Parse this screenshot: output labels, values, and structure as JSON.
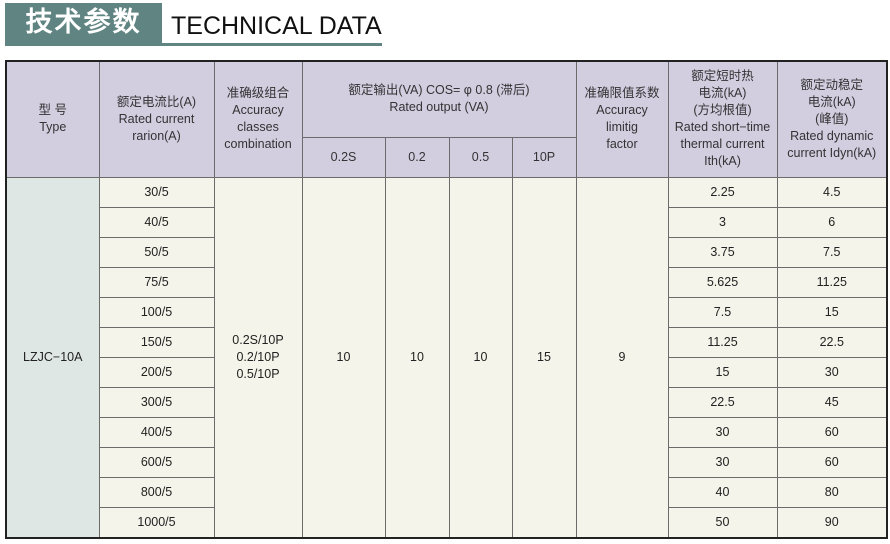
{
  "title": {
    "cn": "技术参数",
    "en": "TECHNICAL DATA"
  },
  "colors": {
    "title_bg": "#5f8482",
    "header_bg": "#d3cde0",
    "body_bg": "#f5f4ea",
    "type_bg": "#dfe7e5"
  },
  "headers": {
    "type": {
      "cn": "型 号",
      "en": "Type"
    },
    "ratio": {
      "cn": "额定电流比(A)",
      "en1": "Rated current",
      "en2": "rarion(A)"
    },
    "accuracy": {
      "cn": "准确级组合",
      "en1": "Accuracy",
      "en2": "classes",
      "en3": "combination"
    },
    "output": {
      "cn": "额定输出(VA) COS= φ 0.8 (滞后)",
      "en": "Rated output (VA)",
      "sub": [
        "0.2S",
        "0.2",
        "0.5",
        "10P"
      ]
    },
    "limit": {
      "cn": "准确限值系数",
      "en1": "Accuracy",
      "en2": "limitig",
      "en3": "factor"
    },
    "thermal": {
      "cn1": "额定短时热",
      "cn2": "电流(kA)",
      "cn3": "(方均根值)",
      "en1": "Rated short−time",
      "en2": "thermal current",
      "en3": "Ith(kA)"
    },
    "dynamic": {
      "cn1": "额定动稳定",
      "cn2": "电流(kA)",
      "cn3": "(峰值)",
      "en1": "Rated dynamic",
      "en2": "current Idyn(kA)"
    }
  },
  "merged": {
    "type": "LZJC−10A",
    "accuracy": [
      "0.2S/10P",
      "0.2/10P",
      "0.5/10P"
    ],
    "output": [
      "10",
      "10",
      "10",
      "15"
    ],
    "limit": "9"
  },
  "rows": [
    {
      "ratio": "30/5",
      "ith": "2.25",
      "idyn": "4.5"
    },
    {
      "ratio": "40/5",
      "ith": "3",
      "idyn": "6"
    },
    {
      "ratio": "50/5",
      "ith": "3.75",
      "idyn": "7.5"
    },
    {
      "ratio": "75/5",
      "ith": "5.625",
      "idyn": "11.25"
    },
    {
      "ratio": "100/5",
      "ith": "7.5",
      "idyn": "15"
    },
    {
      "ratio": "150/5",
      "ith": "11.25",
      "idyn": "22.5"
    },
    {
      "ratio": "200/5",
      "ith": "15",
      "idyn": "30"
    },
    {
      "ratio": "300/5",
      "ith": "22.5",
      "idyn": "45"
    },
    {
      "ratio": "400/5",
      "ith": "30",
      "idyn": "60"
    },
    {
      "ratio": "600/5",
      "ith": "30",
      "idyn": "60"
    },
    {
      "ratio": "800/5",
      "ith": "40",
      "idyn": "80"
    },
    {
      "ratio": "1000/5",
      "ith": "50",
      "idyn": "90"
    }
  ]
}
